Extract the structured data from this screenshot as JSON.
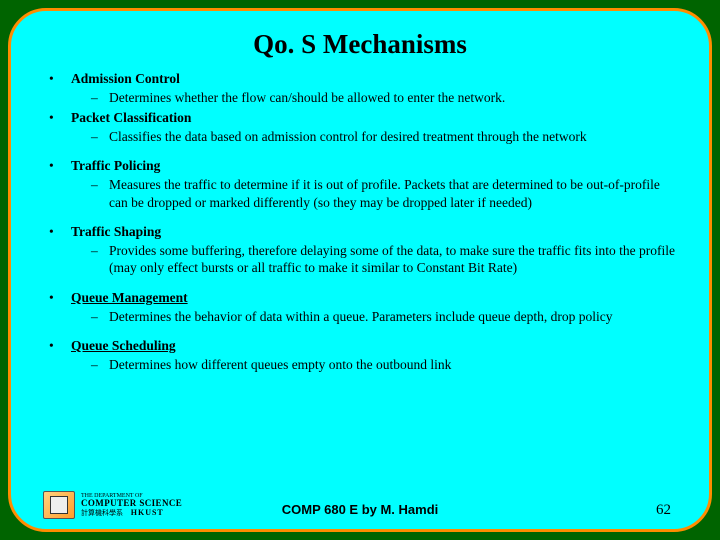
{
  "title": "Qo. S Mechanisms",
  "items": [
    {
      "heading": "Admission Control",
      "underline": false,
      "spaced": false,
      "sub": "Determines whether the flow can/should be allowed to enter the network."
    },
    {
      "heading": "Packet Classification",
      "underline": false,
      "spaced": false,
      "sub": "Classifies the data based on admission control for desired treatment through the network"
    },
    {
      "heading": "Traffic Policing",
      "underline": false,
      "spaced": true,
      "sub": "Measures the traffic to determine if it is out of profile. Packets that are determined to be out-of-profile can be dropped or marked differently (so they may be dropped later if needed)"
    },
    {
      "heading": "Traffic Shaping",
      "underline": false,
      "spaced": true,
      "sub": "Provides some buffering, therefore delaying some of the data, to make sure the traffic fits into the profile (may only effect bursts or all traffic to make it similar to Constant Bit Rate)"
    },
    {
      "heading": "Queue Management",
      "underline": true,
      "spaced": true,
      "sub": "Determines the behavior of data within a queue. Parameters include queue depth, drop policy"
    },
    {
      "heading": "Queue Scheduling",
      "underline": true,
      "spaced": true,
      "sub": "Determines how different queues empty onto the outbound link"
    }
  ],
  "logo": {
    "line1": "THE DEPARTMENT OF",
    "line2": "COMPUTER SCIENCE",
    "line3": "HKUST",
    "sub": "計算機科學系"
  },
  "footer_center": "COMP 680 E by M. Hamdi",
  "page_number": "62"
}
